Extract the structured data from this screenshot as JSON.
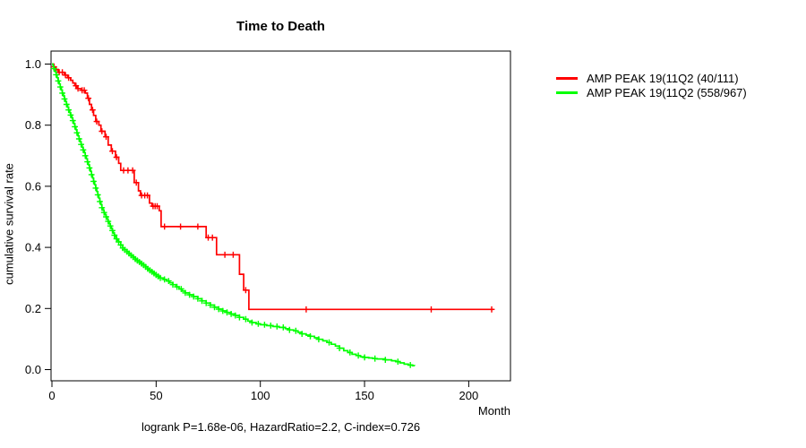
{
  "chart_data": {
    "type": "line",
    "subtype": "kaplan-meier-step",
    "title": "Time to Death",
    "xlabel": "Month",
    "ylabel": "cumulative survival rate",
    "annotation": "logrank P=1.68e-06, HazardRatio=2.2, C-index=0.726",
    "xlim": [
      0,
      220
    ],
    "ylim": [
      0,
      1
    ],
    "grid": false,
    "legend_position": "right",
    "x_ticks": [
      0,
      50,
      100,
      150,
      200
    ],
    "x_tick_labels": [
      "0",
      "50",
      "100",
      "150",
      "200"
    ],
    "y_ticks": [
      0,
      0.2,
      0.4,
      0.6,
      0.8,
      1.0
    ],
    "y_tick_labels": [
      "0.0",
      "0.2",
      "0.4",
      "0.6",
      "0.8",
      "1.0"
    ],
    "colors": {
      "series1": "#ff0000",
      "series2": "#00ff00",
      "axis": "#000000",
      "background": "#ffffff"
    },
    "series": [
      {
        "name": "AMP PEAK 19(11Q2 (40/111)",
        "color": "#ff0000",
        "points": [
          [
            0,
            1.0
          ],
          [
            0.8,
            0.991
          ],
          [
            1.5,
            0.982
          ],
          [
            3,
            0.973
          ],
          [
            6,
            0.964
          ],
          [
            7.5,
            0.955
          ],
          [
            9,
            0.947
          ],
          [
            10,
            0.938
          ],
          [
            11,
            0.929
          ],
          [
            12,
            0.92
          ],
          [
            14,
            0.914
          ],
          [
            16,
            0.905
          ],
          [
            17,
            0.888
          ],
          [
            18,
            0.868
          ],
          [
            19,
            0.85
          ],
          [
            20,
            0.832
          ],
          [
            21,
            0.812
          ],
          [
            22.5,
            0.8
          ],
          [
            23.5,
            0.78
          ],
          [
            25.5,
            0.762
          ],
          [
            27,
            0.735
          ],
          [
            28.5,
            0.715
          ],
          [
            30.5,
            0.695
          ],
          [
            32,
            0.675
          ],
          [
            33,
            0.652
          ],
          [
            39.5,
            0.612
          ],
          [
            41.5,
            0.585
          ],
          [
            42.5,
            0.57
          ],
          [
            46.8,
            0.545
          ],
          [
            48,
            0.535
          ],
          [
            51.5,
            0.52
          ],
          [
            52.4,
            0.468
          ],
          [
            74,
            0.432
          ],
          [
            79,
            0.376
          ],
          [
            90,
            0.312
          ],
          [
            92,
            0.26
          ],
          [
            94.5,
            0.197
          ],
          [
            212,
            0.197
          ]
        ],
        "censor_months": [
          1,
          2,
          3.5,
          5,
          6.5,
          8,
          11.5,
          12.5,
          14.5,
          15.5,
          17.5,
          19.5,
          21.5,
          24,
          26,
          29,
          31,
          34.4,
          36.5,
          38.7,
          40.5,
          43,
          44.5,
          45.8,
          48.5,
          49.5,
          50.5,
          54,
          61.7,
          70,
          75,
          77,
          83,
          87,
          93,
          122,
          182,
          211
        ]
      },
      {
        "name": "AMP PEAK 19(11Q2 (558/967)",
        "color": "#00ff00",
        "points": [
          [
            0,
            1.0
          ],
          [
            0.5,
            0.993
          ],
          [
            1,
            0.985
          ],
          [
            1.5,
            0.975
          ],
          [
            2,
            0.965
          ],
          [
            2.5,
            0.955
          ],
          [
            3,
            0.945
          ],
          [
            3.5,
            0.935
          ],
          [
            4,
            0.925
          ],
          [
            4.5,
            0.915
          ],
          [
            5,
            0.905
          ],
          [
            5.5,
            0.896
          ],
          [
            6,
            0.886
          ],
          [
            6.5,
            0.877
          ],
          [
            7,
            0.868
          ],
          [
            7.5,
            0.859
          ],
          [
            8,
            0.85
          ],
          [
            8.5,
            0.841
          ],
          [
            9,
            0.833
          ],
          [
            9.5,
            0.824
          ],
          [
            10,
            0.815
          ],
          [
            10.5,
            0.805
          ],
          [
            11,
            0.795
          ],
          [
            11.5,
            0.785
          ],
          [
            12,
            0.775
          ],
          [
            12.5,
            0.765
          ],
          [
            13,
            0.755
          ],
          [
            13.5,
            0.746
          ],
          [
            14,
            0.737
          ],
          [
            14.5,
            0.728
          ],
          [
            15,
            0.719
          ],
          [
            15.5,
            0.71
          ],
          [
            16,
            0.7
          ],
          [
            16.5,
            0.69
          ],
          [
            17,
            0.68
          ],
          [
            17.5,
            0.67
          ],
          [
            18,
            0.66
          ],
          [
            18.5,
            0.649
          ],
          [
            19,
            0.638
          ],
          [
            19.5,
            0.627
          ],
          [
            20,
            0.616
          ],
          [
            20.5,
            0.605
          ],
          [
            21,
            0.594
          ],
          [
            21.5,
            0.583
          ],
          [
            22,
            0.572
          ],
          [
            22.5,
            0.561
          ],
          [
            23,
            0.55
          ],
          [
            23.5,
            0.54
          ],
          [
            24,
            0.53
          ],
          [
            24.5,
            0.522
          ],
          [
            25,
            0.514
          ],
          [
            25.5,
            0.507
          ],
          [
            26,
            0.5
          ],
          [
            26.5,
            0.492
          ],
          [
            27,
            0.485
          ],
          [
            27.5,
            0.477
          ],
          [
            28,
            0.47
          ],
          [
            28.5,
            0.462
          ],
          [
            29,
            0.455
          ],
          [
            29.5,
            0.447
          ],
          [
            30,
            0.44
          ],
          [
            30.5,
            0.434
          ],
          [
            31,
            0.428
          ],
          [
            31.5,
            0.423
          ],
          [
            32,
            0.418
          ],
          [
            33,
            0.408
          ],
          [
            34,
            0.398
          ],
          [
            35,
            0.392
          ],
          [
            36,
            0.386
          ],
          [
            37,
            0.38
          ],
          [
            38,
            0.374
          ],
          [
            39,
            0.368
          ],
          [
            40,
            0.362
          ],
          [
            41,
            0.357
          ],
          [
            42,
            0.352
          ],
          [
            43,
            0.347
          ],
          [
            44,
            0.342
          ],
          [
            45,
            0.336
          ],
          [
            46,
            0.33
          ],
          [
            47,
            0.325
          ],
          [
            48,
            0.32
          ],
          [
            49,
            0.315
          ],
          [
            50,
            0.31
          ],
          [
            51,
            0.305
          ],
          [
            52,
            0.3
          ],
          [
            53.5,
            0.295
          ],
          [
            55,
            0.29
          ],
          [
            56.5,
            0.284
          ],
          [
            58,
            0.278
          ],
          [
            59.5,
            0.271
          ],
          [
            61,
            0.264
          ],
          [
            62.5,
            0.257
          ],
          [
            64,
            0.251
          ],
          [
            66,
            0.245
          ],
          [
            68,
            0.239
          ],
          [
            70,
            0.232
          ],
          [
            72,
            0.225
          ],
          [
            74,
            0.218
          ],
          [
            76,
            0.211
          ],
          [
            78,
            0.204
          ],
          [
            80,
            0.198
          ],
          [
            82,
            0.192
          ],
          [
            84,
            0.187
          ],
          [
            86,
            0.182
          ],
          [
            88,
            0.177
          ],
          [
            90,
            0.171
          ],
          [
            92,
            0.165
          ],
          [
            94,
            0.159
          ],
          [
            96,
            0.154
          ],
          [
            98,
            0.15
          ],
          [
            100,
            0.147
          ],
          [
            103,
            0.144
          ],
          [
            106,
            0.141
          ],
          [
            109,
            0.138
          ],
          [
            112,
            0.134
          ],
          [
            114,
            0.13
          ],
          [
            116,
            0.127
          ],
          [
            118,
            0.122
          ],
          [
            120,
            0.117
          ],
          [
            122,
            0.113
          ],
          [
            124,
            0.109
          ],
          [
            126,
            0.104
          ],
          [
            128,
            0.099
          ],
          [
            130,
            0.094
          ],
          [
            132,
            0.089
          ],
          [
            134,
            0.083
          ],
          [
            136,
            0.077
          ],
          [
            138,
            0.07
          ],
          [
            140,
            0.062
          ],
          [
            142,
            0.056
          ],
          [
            144,
            0.05
          ],
          [
            146,
            0.046
          ],
          [
            148,
            0.042
          ],
          [
            150,
            0.04
          ],
          [
            152,
            0.038
          ],
          [
            154,
            0.036
          ],
          [
            156,
            0.035
          ],
          [
            160,
            0.032
          ],
          [
            163,
            0.029
          ],
          [
            165,
            0.026
          ],
          [
            167,
            0.022
          ],
          [
            169,
            0.018
          ],
          [
            171,
            0.015
          ],
          [
            173,
            0.013
          ],
          [
            174,
            0.012
          ]
        ],
        "censor_months": [
          1,
          2,
          3,
          4,
          5,
          6,
          7,
          8,
          9,
          10,
          11,
          12,
          13,
          14,
          15,
          16,
          17,
          18,
          19,
          20,
          21,
          22,
          23,
          24,
          25,
          26,
          27,
          28,
          29,
          30,
          31,
          32,
          33,
          34,
          35,
          36,
          37,
          38,
          39,
          40,
          41,
          42,
          43,
          44,
          45,
          46,
          47,
          48,
          49,
          50,
          51,
          52,
          54,
          56,
          58,
          60,
          62,
          64,
          66,
          68,
          70,
          72,
          74,
          76,
          78,
          80,
          82,
          84,
          86,
          88,
          90,
          93,
          96,
          99,
          102,
          105,
          108,
          111,
          114,
          117,
          120,
          124,
          128,
          133,
          138,
          143,
          147,
          150,
          155,
          160,
          166,
          172
        ]
      }
    ]
  }
}
